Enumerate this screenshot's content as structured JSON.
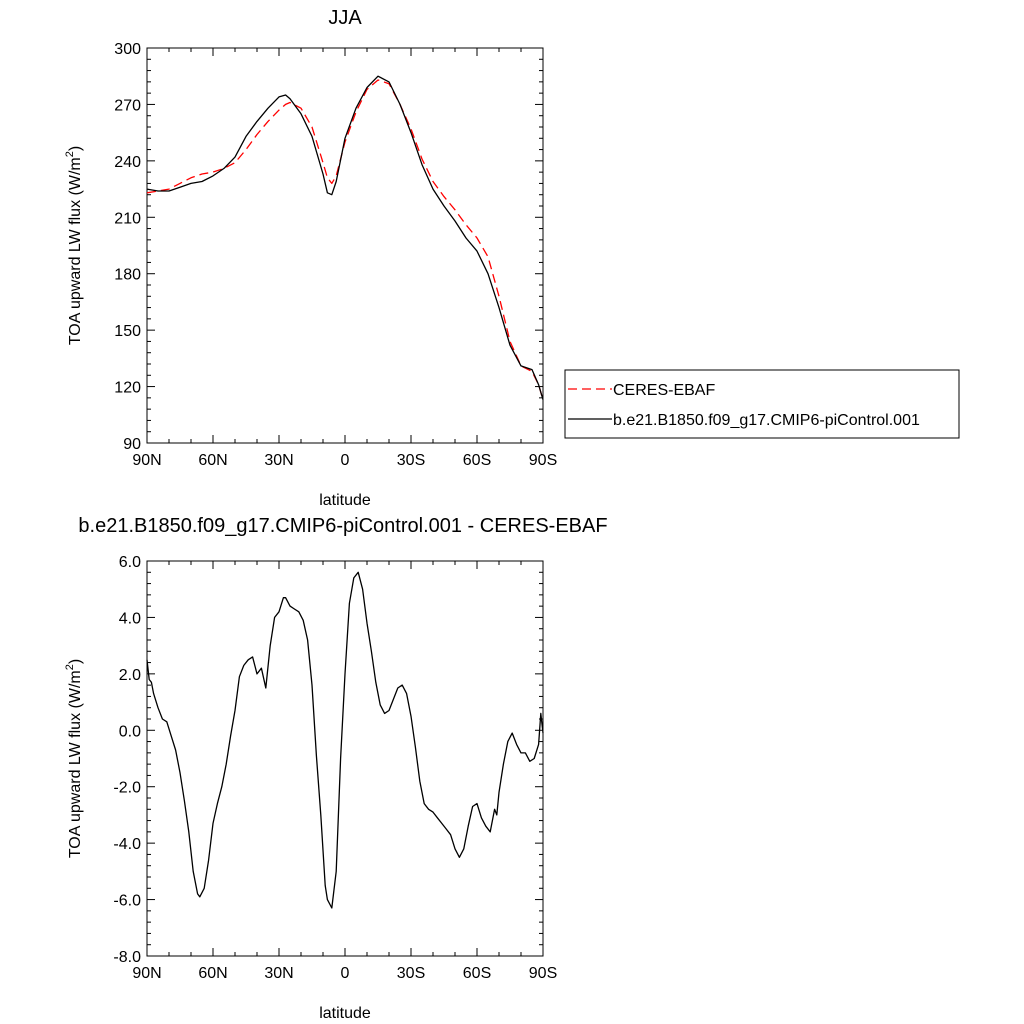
{
  "chart_data": [
    {
      "type": "line",
      "title": "JJA",
      "xlabel": "latitude",
      "ylabel": "TOA upward LW flux (W/m²)",
      "ylabel_main": "TOA upward LW flux (W/m",
      "ylabel_sup": "2",
      "ylabel_end": ")",
      "xlim": [
        90,
        -90
      ],
      "ylim": [
        90,
        300
      ],
      "xticks": [
        90,
        60,
        30,
        0,
        -30,
        -60,
        -90
      ],
      "xtick_labels": [
        "90N",
        "60N",
        "30N",
        "0",
        "30S",
        "60S",
        "90S"
      ],
      "yticks": [
        90,
        120,
        150,
        180,
        210,
        240,
        270,
        300
      ],
      "ytick_labels": [
        "90",
        "120",
        "150",
        "180",
        "210",
        "240",
        "270",
        "300"
      ],
      "grid": false,
      "legend_position": "right",
      "legend": [
        "CERES-EBAF",
        "b.e21.B1850.f09_g17.CMIP6-piControl.001"
      ],
      "series": [
        {
          "name": "CERES-EBAF",
          "color": "#ff0000",
          "dash": "dashed",
          "x": [
            90,
            85,
            80,
            75,
            70,
            65,
            60,
            55,
            50,
            45,
            40,
            35,
            30,
            27,
            25,
            20,
            15,
            10,
            8,
            6,
            4,
            0,
            -5,
            -10,
            -15,
            -20,
            -25,
            -30,
            -35,
            -40,
            -45,
            -50,
            -55,
            -60,
            -65,
            -70,
            -75,
            -80,
            -85,
            -88,
            -90
          ],
          "y": [
            223,
            224,
            225,
            228,
            231,
            233,
            234,
            236,
            239,
            246,
            254,
            261,
            267,
            270,
            271,
            268,
            258,
            239,
            231,
            228,
            232,
            250,
            266,
            278,
            283,
            281,
            270,
            257,
            241,
            229,
            221,
            214,
            206,
            199,
            189,
            168,
            144,
            131,
            128,
            121,
            113
          ]
        },
        {
          "name": "b.e21.B1850.f09_g17.CMIP6-piControl.001",
          "color": "#000000",
          "dash": "solid",
          "x": [
            90,
            85,
            80,
            75,
            70,
            65,
            60,
            55,
            50,
            45,
            40,
            35,
            30,
            27,
            25,
            20,
            15,
            10,
            8,
            6,
            4,
            0,
            -5,
            -10,
            -15,
            -20,
            -25,
            -30,
            -35,
            -40,
            -45,
            -50,
            -55,
            -60,
            -65,
            -70,
            -75,
            -80,
            -85,
            -88,
            -90
          ],
          "y": [
            225,
            224,
            224,
            226,
            228,
            229,
            232,
            236,
            242,
            253,
            261,
            268,
            274,
            275,
            273,
            265,
            253,
            233,
            223,
            222,
            229,
            252,
            268,
            279,
            285,
            282,
            270,
            255,
            238,
            225,
            216,
            208,
            199,
            192,
            180,
            162,
            142,
            131,
            129,
            121,
            113
          ]
        }
      ]
    },
    {
      "type": "line",
      "title": "b.e21.B1850.f09_g17.CMIP6-piControl.001 - CERES-EBAF",
      "xlabel": "latitude",
      "ylabel": "TOA upward LW flux (W/m²)",
      "ylabel_main": "TOA upward LW flux (W/m",
      "ylabel_sup": "2",
      "ylabel_end": ")",
      "xlim": [
        90,
        -90
      ],
      "ylim": [
        -8,
        6
      ],
      "xticks": [
        90,
        60,
        30,
        0,
        -30,
        -60,
        -90
      ],
      "xtick_labels": [
        "90N",
        "60N",
        "30N",
        "0",
        "30S",
        "60S",
        "90S"
      ],
      "yticks": [
        -8,
        -6,
        -4,
        -2,
        0,
        2,
        4,
        6
      ],
      "ytick_labels": [
        "-8.0",
        "-6.0",
        "-4.0",
        "-2.0",
        "0.0",
        "2.0",
        "4.0",
        "6.0"
      ],
      "grid": false,
      "series": [
        {
          "color": "#000000",
          "dash": "solid",
          "x": [
            90,
            89,
            88,
            87,
            85,
            83,
            81,
            79,
            77,
            75,
            73,
            71,
            69,
            67,
            66,
            64,
            62,
            60,
            58,
            56,
            54,
            52,
            50,
            48,
            46,
            44,
            42,
            40,
            38,
            36,
            34,
            32,
            30,
            28,
            27,
            25,
            23,
            21,
            19,
            17,
            15,
            13,
            11,
            9,
            8,
            6,
            4,
            2,
            0,
            -2,
            -4,
            -6,
            -8,
            -10,
            -12,
            -14,
            -16,
            -18,
            -20,
            -22,
            -24,
            -26,
            -28,
            -30,
            -32,
            -34,
            -36,
            -38,
            -40,
            -42,
            -44,
            -46,
            -48,
            -50,
            -52,
            -54,
            -56,
            -58,
            -60,
            -62,
            -64,
            -66,
            -68,
            -69,
            -70,
            -72,
            -74,
            -76,
            -78,
            -80,
            -82,
            -84,
            -86,
            -88,
            -89,
            -90
          ],
          "y": [
            2.5,
            1.8,
            1.7,
            1.3,
            0.8,
            0.4,
            0.3,
            -0.2,
            -0.7,
            -1.5,
            -2.5,
            -3.6,
            -5.0,
            -5.8,
            -5.9,
            -5.6,
            -4.6,
            -3.3,
            -2.6,
            -2.0,
            -1.2,
            -0.2,
            0.7,
            1.9,
            2.3,
            2.5,
            2.6,
            2.0,
            2.2,
            1.5,
            3.0,
            4.0,
            4.2,
            4.7,
            4.7,
            4.4,
            4.3,
            4.2,
            3.9,
            3.2,
            1.6,
            -0.9,
            -3.0,
            -5.5,
            -6.0,
            -6.3,
            -5.0,
            -1.0,
            2.0,
            4.5,
            5.4,
            5.6,
            5.0,
            3.8,
            2.8,
            1.7,
            0.9,
            0.6,
            0.7,
            1.1,
            1.5,
            1.6,
            1.3,
            0.5,
            -0.6,
            -1.8,
            -2.6,
            -2.8,
            -2.9,
            -3.1,
            -3.3,
            -3.5,
            -3.7,
            -4.2,
            -4.5,
            -4.2,
            -3.4,
            -2.7,
            -2.6,
            -3.1,
            -3.4,
            -3.6,
            -2.8,
            -3.0,
            -2.2,
            -1.2,
            -0.4,
            -0.1,
            -0.5,
            -0.8,
            -0.8,
            -1.1,
            -1.0,
            -0.5,
            0.6,
            -0.1
          ]
        }
      ]
    }
  ]
}
